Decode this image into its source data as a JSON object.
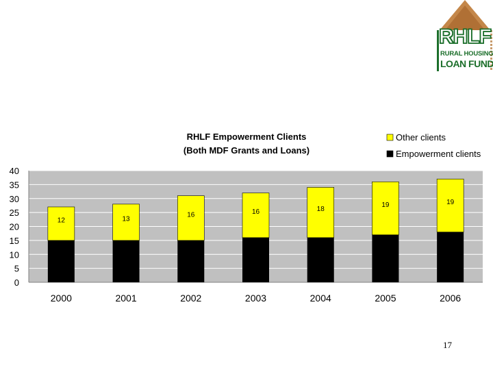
{
  "logo": {
    "title": "RHLF",
    "line1": "RURAL HOUSING",
    "line2": "LOAN FUND"
  },
  "page_number": "17",
  "colors": {
    "other": "#ffff00",
    "empowerment": "#000000",
    "plot_bg": "#c0c0c0"
  },
  "chart_data": {
    "type": "bar",
    "stacked": true,
    "title": "RHLF Empowerment Clients",
    "subtitle": "(Both MDF Grants and Loans)",
    "xlabel": "",
    "ylabel": "",
    "categories": [
      "2000",
      "2001",
      "2002",
      "2003",
      "2004",
      "2005",
      "2006"
    ],
    "series": [
      {
        "name": "Empowerment clients",
        "values": [
          15,
          15,
          15,
          16,
          16,
          17,
          18
        ]
      },
      {
        "name": "Other clients",
        "values": [
          12,
          13,
          16,
          16,
          18,
          19,
          19
        ]
      }
    ],
    "data_labels": [
      "12",
      "13",
      "16",
      "16",
      "18",
      "19",
      "19"
    ],
    "ylim": [
      0,
      40
    ],
    "yticks": [
      0,
      5,
      10,
      15,
      20,
      25,
      30,
      35,
      40
    ],
    "grid": true,
    "legend_position": "top-right"
  }
}
